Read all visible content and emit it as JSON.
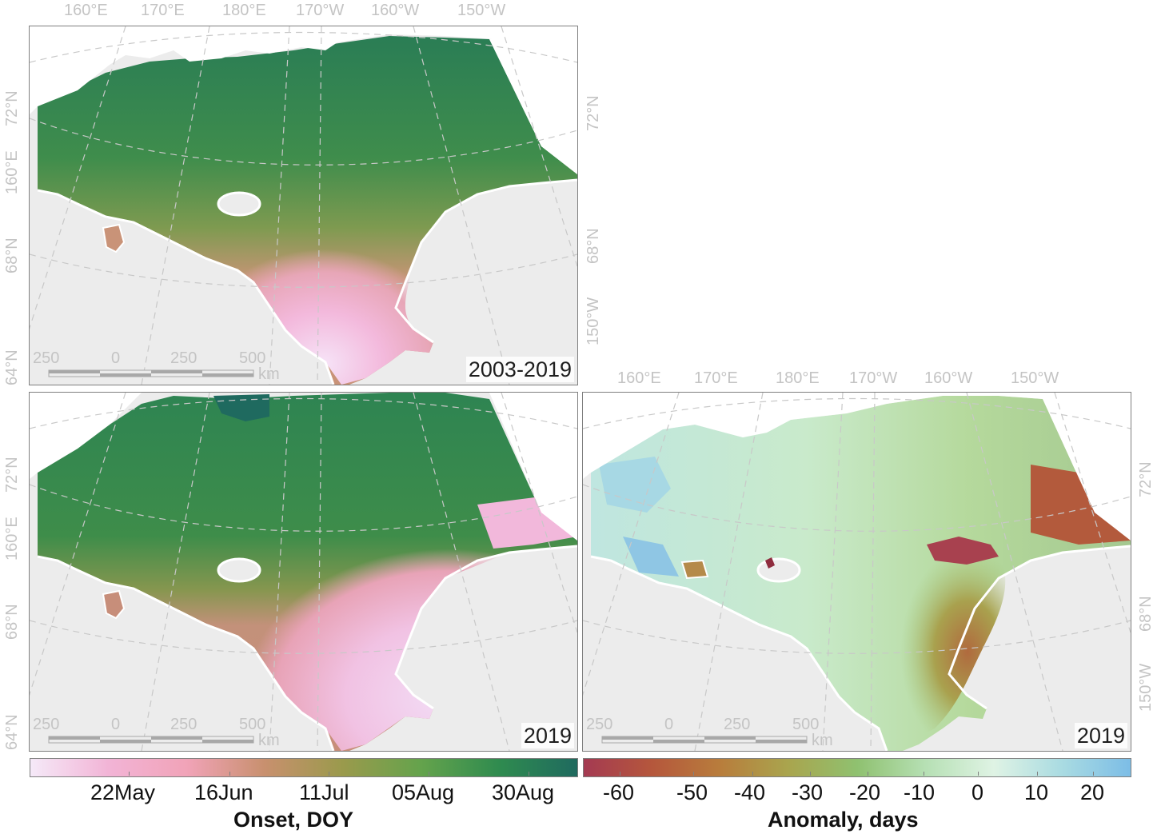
{
  "panels": {
    "top_left": {
      "label": "2003-2019"
    },
    "bottom_left": {
      "label": "2019"
    },
    "bottom_right": {
      "label": "2019"
    }
  },
  "graticule": {
    "longitudes": [
      "160°E",
      "170°E",
      "180°E",
      "170°W",
      "160°W",
      "150°W"
    ],
    "right_labels": [
      "72°N",
      "68°N",
      "150°W"
    ],
    "left_labels": [
      "72°N",
      "160°E",
      "68°N",
      "64°N"
    ]
  },
  "scale_bar": {
    "labels": [
      "250",
      "0",
      "250",
      "500"
    ],
    "unit": "km"
  },
  "onset_legend": {
    "title": "Onset, DOY",
    "labels": [
      "22May",
      "16Jun",
      "11Jul",
      "05Aug",
      "30Aug"
    ],
    "colors": [
      "#f5e9f8",
      "#f2b4d6",
      "#f1a3b8",
      "#c8906e",
      "#9a9a4c",
      "#64a34c",
      "#2f8b4f",
      "#1f6a5f"
    ]
  },
  "anomaly_legend": {
    "title": "Anomaly, days",
    "labels": [
      "-60",
      "-50",
      "-40",
      "-30",
      "-20",
      "-10",
      "0",
      "10",
      "20"
    ],
    "colors": [
      "#a43a52",
      "#b5573c",
      "#b87d3c",
      "#a9a54e",
      "#8fc170",
      "#b6e0b4",
      "#dff3e4",
      "#a9dbe2",
      "#7cbde6"
    ]
  },
  "colors": {
    "land": "#ececec",
    "coast": "#ffffff",
    "graticule": "#c8c8c8",
    "label_gray": "#c4c4c4"
  }
}
